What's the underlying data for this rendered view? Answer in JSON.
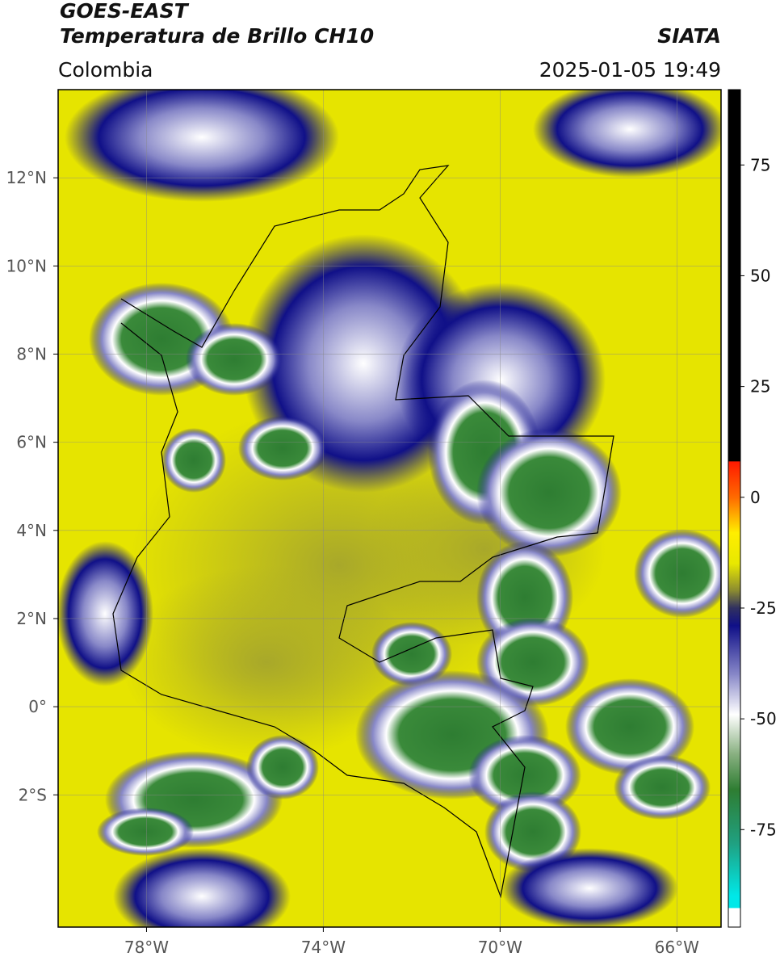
{
  "header": {
    "title": "GOES-EAST",
    "subtitle": "Temperatura de Brillo CH10",
    "source": "SIATA",
    "region": "Colombia",
    "datetime": "2025-01-05 19:49"
  },
  "map": {
    "lon_lim": [
      -80,
      -65
    ],
    "lat_lim": [
      -5,
      14
    ],
    "lon_ticks": [
      {
        "value": -78,
        "label": "78°W"
      },
      {
        "value": -74,
        "label": "74°W"
      },
      {
        "value": -70,
        "label": "70°W"
      },
      {
        "value": -66,
        "label": "66°W"
      }
    ],
    "lat_ticks": [
      {
        "value": 12,
        "label": "12°N"
      },
      {
        "value": 10,
        "label": "10°N"
      },
      {
        "value": 8,
        "label": "8°N"
      },
      {
        "value": 6,
        "label": "6°N"
      },
      {
        "value": 4,
        "label": "4°N"
      },
      {
        "value": 2,
        "label": "2°N"
      },
      {
        "value": 0,
        "label": "0°"
      },
      {
        "value": -2,
        "label": "2°S"
      }
    ],
    "grid": true
  },
  "colorbar": {
    "lim": [
      -97,
      92
    ],
    "ticks": [
      75,
      50,
      25,
      0,
      -25,
      -50,
      -75
    ],
    "colormap": [
      {
        "value": 92,
        "color": "#000000"
      },
      {
        "value": 8.2,
        "color": "#000000"
      },
      {
        "value": 8,
        "color": "#ff1a00"
      },
      {
        "value": 0,
        "color": "#ff6a00"
      },
      {
        "value": -8,
        "color": "#ffee00"
      },
      {
        "value": -15,
        "color": "#e8e800"
      },
      {
        "value": -21,
        "color": "#8c8c30"
      },
      {
        "value": -25,
        "color": "#303060"
      },
      {
        "value": -29,
        "color": "#101088"
      },
      {
        "value": -40,
        "color": "#8888c8"
      },
      {
        "value": -49,
        "color": "#ffffff"
      },
      {
        "value": -58,
        "color": "#88b080"
      },
      {
        "value": -66,
        "color": "#2e7d32"
      },
      {
        "value": -78,
        "color": "#20a080"
      },
      {
        "value": -90,
        "color": "#00e8e8"
      },
      {
        "value": -92.6,
        "color": "#00e8e8"
      },
      {
        "value": -92.8,
        "color": "#ffffff"
      },
      {
        "value": -97,
        "color": "#ffffff"
      }
    ]
  }
}
